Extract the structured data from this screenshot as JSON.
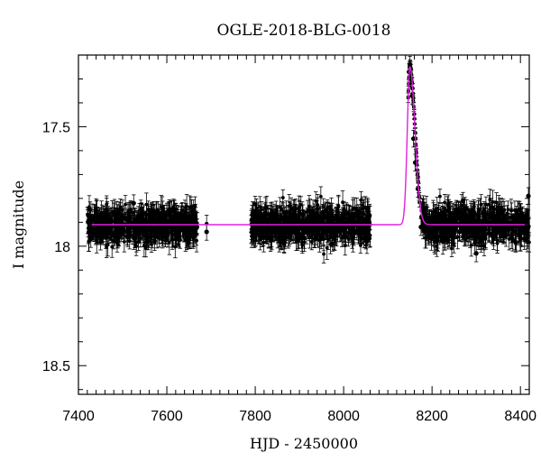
{
  "chart_data": {
    "type": "scatter",
    "title": "OGLE-2018-BLG-0018",
    "xlabel": "HJD - 2450000",
    "ylabel": "I magnitude",
    "xlim": [
      7400,
      8420
    ],
    "ylim": [
      18.62,
      17.2
    ],
    "y_axis_inverted": true,
    "x_ticks": [
      7400,
      7600,
      7800,
      8000,
      8200,
      8400
    ],
    "x_tick_labels": [
      "7400",
      "7600",
      "7800",
      "8000",
      "8200",
      "8400"
    ],
    "y_ticks": [
      17.5,
      18,
      18.5
    ],
    "y_tick_labels": [
      "17.5",
      "18",
      "18.5"
    ],
    "grid": false,
    "colors": {
      "points": "#000000",
      "model": "#e020e0"
    },
    "model": {
      "baseline_mag": 17.91,
      "peak_time": 8150,
      "peak_mag": 17.25,
      "fwhm_days": 14
    },
    "observing_seasons": [
      {
        "start": 7420,
        "end": 7670,
        "extra": [
          7690
        ]
      },
      {
        "start": 7790,
        "end": 8060,
        "extra": []
      },
      {
        "start": 8155,
        "end": 8420,
        "extra": []
      }
    ],
    "series": [
      {
        "values": [
          [
            7428,
            17.97
          ],
          [
            7445,
            17.93
          ],
          [
            7460,
            17.88
          ],
          [
            7478,
            17.95
          ],
          [
            7492,
            17.85
          ],
          [
            7510,
            17.96
          ],
          [
            7525,
            17.82
          ],
          [
            7540,
            17.91
          ],
          [
            7558,
            17.98
          ],
          [
            7573,
            17.86
          ],
          [
            7590,
            17.94
          ],
          [
            7605,
            17.9
          ],
          [
            7622,
            17.97
          ],
          [
            7638,
            17.87
          ],
          [
            7652,
            17.95
          ],
          [
            7668,
            17.92
          ],
          [
            7690,
            17.94
          ],
          [
            7795,
            17.96
          ],
          [
            7812,
            17.88
          ],
          [
            7830,
            17.93
          ],
          [
            7848,
            17.9
          ],
          [
            7865,
            17.99
          ],
          [
            7882,
            17.87
          ],
          [
            7900,
            17.95
          ],
          [
            7918,
            17.89
          ],
          [
            7935,
            17.97
          ],
          [
            7952,
            17.86
          ],
          [
            7970,
            17.93
          ],
          [
            7988,
            17.9
          ],
          [
            8005,
            17.96
          ],
          [
            8022,
            17.88
          ],
          [
            8040,
            17.94
          ],
          [
            8055,
            17.84
          ],
          [
            8148,
            17.27
          ],
          [
            8150,
            17.24
          ],
          [
            8152,
            17.3
          ],
          [
            8155,
            17.37
          ],
          [
            8158,
            17.55
          ],
          [
            8162,
            17.65
          ],
          [
            8168,
            17.76
          ],
          [
            8175,
            17.92
          ],
          [
            8192,
            17.96
          ],
          [
            8210,
            17.88
          ],
          [
            8228,
            17.97
          ],
          [
            8245,
            17.9
          ],
          [
            8262,
            17.94
          ],
          [
            8270,
            17.81
          ],
          [
            8285,
            17.93
          ],
          [
            8300,
            18.03
          ],
          [
            8318,
            17.89
          ],
          [
            8335,
            17.95
          ],
          [
            8352,
            17.86
          ],
          [
            8370,
            17.92
          ],
          [
            8388,
            17.98
          ],
          [
            8405,
            17.87
          ],
          [
            8418,
            17.79
          ]
        ]
      }
    ]
  }
}
